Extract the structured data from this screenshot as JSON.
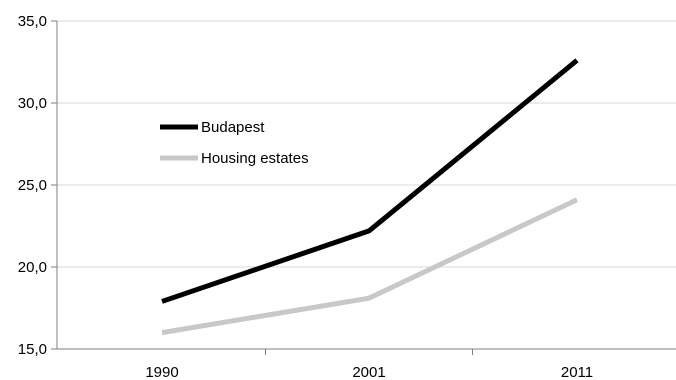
{
  "chart_data": {
    "type": "line",
    "title": "",
    "xlabel": "",
    "ylabel": "",
    "categories": [
      "1990",
      "2001",
      "2011"
    ],
    "ylim": [
      15,
      35
    ],
    "yticks": [
      "15,0",
      "20,0",
      "25,0",
      "30,0",
      "35,0"
    ],
    "grid": true,
    "legend_position": "top-left",
    "series": [
      {
        "name": "Budapest",
        "values": [
          17.9,
          22.2,
          32.6
        ],
        "color": "#000000"
      },
      {
        "name": "Housing estates",
        "values": [
          16.0,
          18.1,
          24.1
        ],
        "color": "#c8c8c8"
      }
    ]
  }
}
